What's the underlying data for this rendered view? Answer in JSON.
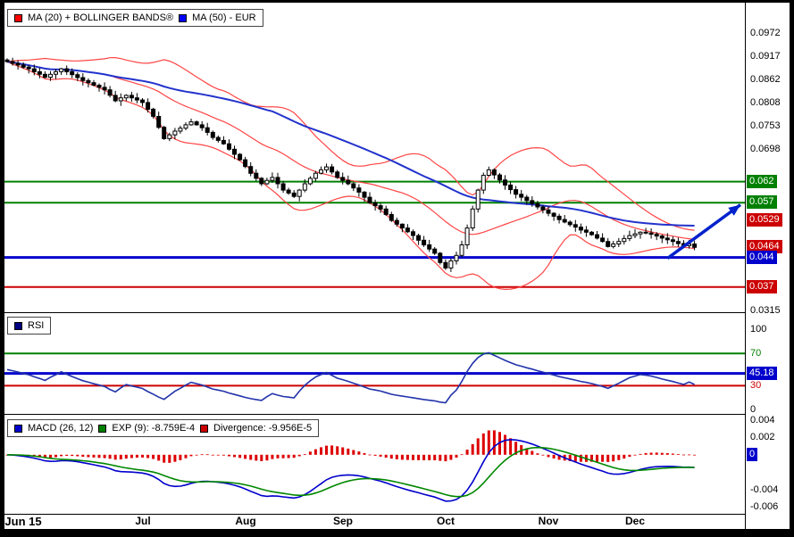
{
  "chart_data": [
    {
      "type": "candlestick",
      "name": "price",
      "instrument": "EUR",
      "legend": [
        {
          "color": "#ff0000",
          "label": "MA (20) + BOLLINGER BANDS®"
        },
        {
          "color": "#0000ff",
          "label": "MA (50) - EUR"
        }
      ],
      "ylim": [
        0.031,
        0.1045
      ],
      "yticks": [
        "0.0972",
        "0.0917",
        "0.0862",
        "0.0808",
        "0.0753",
        "0.0698",
        "0.0315"
      ],
      "badges": [
        {
          "text": "0.062",
          "value": 0.062,
          "bg": "#008000"
        },
        {
          "text": "0.057",
          "value": 0.057,
          "bg": "#008000"
        },
        {
          "text": "0.0529",
          "value": 0.0529,
          "bg": "#cc0000"
        },
        {
          "text": "0.0464",
          "value": 0.0464,
          "bg": "#cc0000"
        },
        {
          "text": "0.044",
          "value": 0.044,
          "bg": "#0000cc"
        },
        {
          "text": "0.037",
          "value": 0.037,
          "bg": "#cc0000"
        }
      ],
      "levels": [
        {
          "value": 0.062,
          "color": "#008000",
          "w": 2
        },
        {
          "value": 0.057,
          "color": "#008000",
          "w": 2
        },
        {
          "value": 0.044,
          "color": "#0000cc",
          "w": 3
        },
        {
          "value": 0.037,
          "color": "#cc0000",
          "w": 2
        }
      ],
      "trend_arrow": {
        "from_idx": 122,
        "from_value": 0.0438,
        "to_value": 0.0565,
        "color": "#0022cc"
      },
      "colors": {
        "bollinger": "#ff4444",
        "ma50": "#2233cc",
        "candle": "#000000"
      },
      "x_labels": [
        {
          "text": "Jun 15",
          "idx": 3,
          "bold": true
        },
        {
          "text": "Jul",
          "idx": 25
        },
        {
          "text": "Aug",
          "idx": 44
        },
        {
          "text": "Sep",
          "idx": 62
        },
        {
          "text": "Oct",
          "idx": 81
        },
        {
          "text": "Nov",
          "idx": 100
        },
        {
          "text": "Dec",
          "idx": 116
        }
      ],
      "closes": [
        0.0905,
        0.0901,
        0.0897,
        0.0892,
        0.0888,
        0.0881,
        0.0875,
        0.0868,
        0.0875,
        0.0881,
        0.0888,
        0.0881,
        0.0874,
        0.0867,
        0.086,
        0.0855,
        0.0849,
        0.0844,
        0.0838,
        0.0825,
        0.0812,
        0.0819,
        0.0825,
        0.0819,
        0.0814,
        0.0808,
        0.0792,
        0.0775,
        0.0749,
        0.0722,
        0.0731,
        0.074,
        0.0747,
        0.0755,
        0.0762,
        0.0755,
        0.0748,
        0.0737,
        0.0725,
        0.0718,
        0.071,
        0.0697,
        0.0685,
        0.0672,
        0.0656,
        0.064,
        0.0628,
        0.0615,
        0.0623,
        0.063,
        0.0615,
        0.06,
        0.0593,
        0.0585,
        0.06,
        0.0615,
        0.0628,
        0.064,
        0.0648,
        0.0655,
        0.0643,
        0.063,
        0.0623,
        0.0615,
        0.0605,
        0.0595,
        0.0583,
        0.057,
        0.0563,
        0.0555,
        0.0542,
        0.0528,
        0.0519,
        0.051,
        0.0501,
        0.0492,
        0.0481,
        0.047,
        0.046,
        0.045,
        0.0428,
        0.0415,
        0.0432,
        0.0445,
        0.047,
        0.051,
        0.0555,
        0.06,
        0.0635,
        0.0648,
        0.0636,
        0.0624,
        0.0612,
        0.0601,
        0.059,
        0.0583,
        0.0575,
        0.0568,
        0.056,
        0.0553,
        0.0545,
        0.0538,
        0.053,
        0.0524,
        0.0518,
        0.0512,
        0.0505,
        0.05,
        0.0494,
        0.0486,
        0.0478,
        0.0466,
        0.0472,
        0.0478,
        0.0485,
        0.0492,
        0.0496,
        0.05,
        0.0498,
        0.0495,
        0.0491,
        0.0486,
        0.0482,
        0.0478,
        0.0473,
        0.0468,
        0.0472,
        0.0464
      ]
    },
    {
      "type": "line",
      "name": "RSI",
      "legend": [
        {
          "color": "#000080",
          "label": "RSI"
        }
      ],
      "ylim": [
        -5,
        120
      ],
      "yticks": [
        {
          "text": "100",
          "value": 100,
          "color": "#000000"
        },
        {
          "text": "70",
          "value": 70,
          "color": "#008000"
        },
        {
          "text": "30",
          "value": 30,
          "color": "#cc0000"
        },
        {
          "text": "0",
          "value": 0,
          "color": "#000000"
        }
      ],
      "badge": {
        "text": "45.18",
        "value": 45.18,
        "bg": "#0000cc"
      },
      "levels": [
        {
          "value": 70,
          "color": "#008000",
          "w": 2
        },
        {
          "value": 45.18,
          "color": "#0000cc",
          "w": 3
        },
        {
          "value": 30,
          "color": "#cc0000",
          "w": 2
        }
      ],
      "line_color": "#2233aa",
      "current": 45.18
    },
    {
      "type": "macd",
      "name": "MACD",
      "legend": [
        {
          "color": "#0000cc",
          "label": "MACD (26, 12)"
        },
        {
          "color": "#008000",
          "label": "EXP (9): -8.759E-4"
        },
        {
          "color": "#cc0000",
          "label": "Divergence: -9.956E-5"
        }
      ],
      "ylim": [
        -0.0068,
        0.0046
      ],
      "yticks": [
        {
          "text": "0.004",
          "value": 0.004
        },
        {
          "text": "0.002",
          "value": 0.002
        },
        {
          "text": "-0.004",
          "value": -0.004
        },
        {
          "text": "-0.006",
          "value": -0.006
        }
      ],
      "badge": {
        "text": "0",
        "value": 0,
        "bg": "#0000cc"
      },
      "signal_value": "-8.759E-4",
      "divergence_value": "-9.956E-5",
      "colors": {
        "macd": "#0000cc",
        "signal": "#008800",
        "histogram": "#dd0000"
      }
    }
  ]
}
